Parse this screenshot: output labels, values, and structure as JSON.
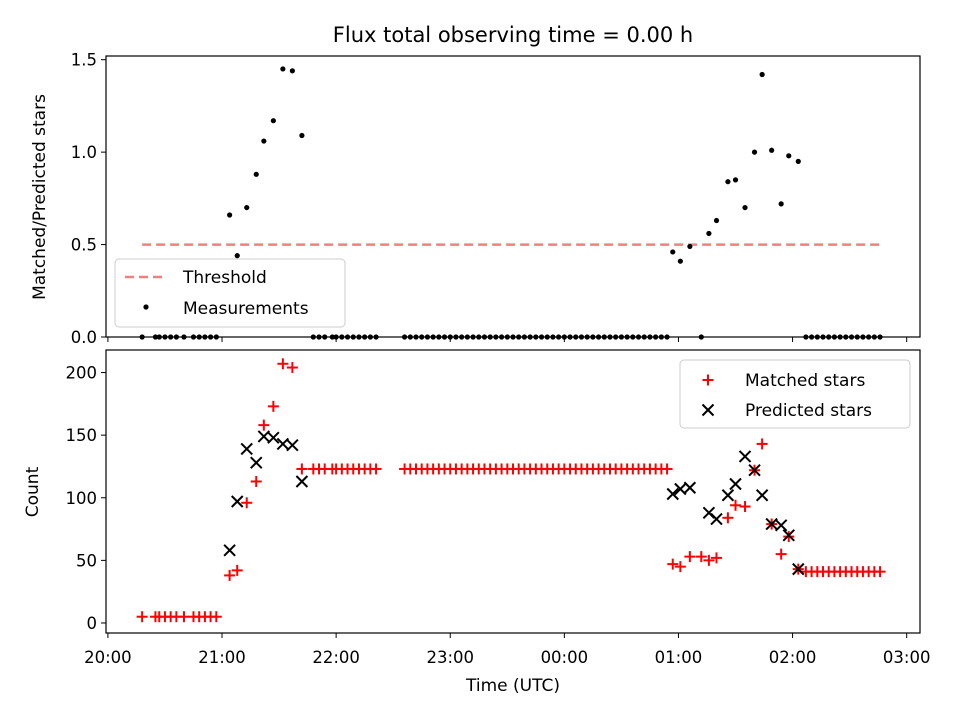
{
  "figure": {
    "title": "Flux total observing time = 0.00 h",
    "xlabel": "Time (UTC)",
    "xticks": [
      "20:00",
      "21:00",
      "22:00",
      "23:00",
      "00:00",
      "01:00",
      "02:00",
      "03:00"
    ]
  },
  "colors": {
    "threshold": "#f08080",
    "measurements": "#000000",
    "matched": "#ff0000",
    "predicted": "#000000"
  },
  "chart_data": [
    {
      "type": "scatter",
      "ylabel": "Matched/Predicted stars",
      "xlim": [
        "19:59",
        "03:07"
      ],
      "ylim": [
        0,
        1.52
      ],
      "yticks": [
        "0.0",
        "0.5",
        "1.0",
        "1.5"
      ],
      "threshold": {
        "name": "Threshold",
        "value": 0.5,
        "x_range": [
          "20:18",
          "02:47"
        ],
        "style": "dashed"
      },
      "legend_position": "lower-left",
      "series": [
        {
          "name": "Measurements",
          "marker": "dot",
          "points": [
            [
              "20:18",
              0
            ],
            [
              "20:25",
              0
            ],
            [
              "20:27",
              0
            ],
            [
              "20:30",
              0
            ],
            [
              "20:33",
              0
            ],
            [
              "20:36",
              0
            ],
            [
              "20:40",
              0
            ],
            [
              "20:45",
              0
            ],
            [
              "20:48",
              0
            ],
            [
              "20:51",
              0
            ],
            [
              "20:54",
              0
            ],
            [
              "20:57",
              0
            ],
            [
              "21:04",
              0.66
            ],
            [
              "21:08",
              0.44
            ],
            [
              "21:13",
              0.7
            ],
            [
              "21:18",
              0.88
            ],
            [
              "21:22",
              1.06
            ],
            [
              "21:27",
              1.17
            ],
            [
              "21:32",
              1.45
            ],
            [
              "21:37",
              1.44
            ],
            [
              "21:42",
              1.09
            ],
            [
              "21:48",
              0
            ],
            [
              "21:51",
              0
            ],
            [
              "21:54",
              0
            ],
            [
              "21:58",
              0
            ],
            [
              "22:00",
              0
            ],
            [
              "22:03",
              0
            ],
            [
              "22:06",
              0
            ],
            [
              "22:09",
              0
            ],
            [
              "22:12",
              0
            ],
            [
              "22:15",
              0
            ],
            [
              "22:18",
              0
            ],
            [
              "22:21",
              0
            ],
            [
              "22:36",
              0
            ],
            [
              "22:39",
              0
            ],
            [
              "22:42",
              0
            ],
            [
              "22:45",
              0
            ],
            [
              "22:48",
              0
            ],
            [
              "22:51",
              0
            ],
            [
              "22:54",
              0
            ],
            [
              "22:57",
              0
            ],
            [
              "23:00",
              0
            ],
            [
              "23:03",
              0
            ],
            [
              "23:06",
              0
            ],
            [
              "23:09",
              0
            ],
            [
              "23:12",
              0
            ],
            [
              "23:15",
              0
            ],
            [
              "23:18",
              0
            ],
            [
              "23:21",
              0
            ],
            [
              "23:24",
              0
            ],
            [
              "23:27",
              0
            ],
            [
              "23:30",
              0
            ],
            [
              "23:33",
              0
            ],
            [
              "23:36",
              0
            ],
            [
              "23:39",
              0
            ],
            [
              "23:42",
              0
            ],
            [
              "23:45",
              0
            ],
            [
              "23:48",
              0
            ],
            [
              "23:51",
              0
            ],
            [
              "23:54",
              0
            ],
            [
              "23:57",
              0
            ],
            [
              "00:00",
              0
            ],
            [
              "00:03",
              0
            ],
            [
              "00:06",
              0
            ],
            [
              "00:09",
              0
            ],
            [
              "00:12",
              0
            ],
            [
              "00:15",
              0
            ],
            [
              "00:18",
              0
            ],
            [
              "00:21",
              0
            ],
            [
              "00:24",
              0
            ],
            [
              "00:27",
              0
            ],
            [
              "00:30",
              0
            ],
            [
              "00:33",
              0
            ],
            [
              "00:36",
              0
            ],
            [
              "00:39",
              0
            ],
            [
              "00:42",
              0
            ],
            [
              "00:45",
              0
            ],
            [
              "00:48",
              0
            ],
            [
              "00:51",
              0
            ],
            [
              "00:54",
              0
            ],
            [
              "00:57",
              0.46
            ],
            [
              "01:01",
              0.41
            ],
            [
              "01:06",
              0.49
            ],
            [
              "01:12",
              0
            ],
            [
              "01:16",
              0.56
            ],
            [
              "01:20",
              0.63
            ],
            [
              "01:26",
              0.84
            ],
            [
              "01:30",
              0.85
            ],
            [
              "01:35",
              0.7
            ],
            [
              "01:40",
              1.0
            ],
            [
              "01:44",
              1.42
            ],
            [
              "01:49",
              1.01
            ],
            [
              "01:54",
              0.72
            ],
            [
              "01:58",
              0.98
            ],
            [
              "02:03",
              0.95
            ],
            [
              "02:07",
              0
            ],
            [
              "02:10",
              0
            ],
            [
              "02:13",
              0
            ],
            [
              "02:16",
              0
            ],
            [
              "02:19",
              0
            ],
            [
              "02:22",
              0
            ],
            [
              "02:25",
              0
            ],
            [
              "02:28",
              0
            ],
            [
              "02:31",
              0
            ],
            [
              "02:34",
              0
            ],
            [
              "02:37",
              0
            ],
            [
              "02:40",
              0
            ],
            [
              "02:43",
              0
            ],
            [
              "02:46",
              0
            ]
          ]
        }
      ]
    },
    {
      "type": "scatter",
      "ylabel": "Count",
      "xlim": [
        "19:59",
        "03:07"
      ],
      "ylim": [
        -8,
        218
      ],
      "yticks": [
        "0",
        "50",
        "100",
        "150",
        "200"
      ],
      "legend_position": "upper-right",
      "series": [
        {
          "name": "Matched stars",
          "marker": "plus",
          "points": [
            [
              "20:18",
              5
            ],
            [
              "20:25",
              5
            ],
            [
              "20:27",
              5
            ],
            [
              "20:30",
              5
            ],
            [
              "20:33",
              5
            ],
            [
              "20:36",
              5
            ],
            [
              "20:40",
              5
            ],
            [
              "20:45",
              5
            ],
            [
              "20:48",
              5
            ],
            [
              "20:51",
              5
            ],
            [
              "20:54",
              5
            ],
            [
              "20:57",
              5
            ],
            [
              "21:04",
              38
            ],
            [
              "21:08",
              42
            ],
            [
              "21:13",
              96
            ],
            [
              "21:18",
              113
            ],
            [
              "21:22",
              158
            ],
            [
              "21:27",
              173
            ],
            [
              "21:32",
              207
            ],
            [
              "21:37",
              204
            ],
            [
              "21:42",
              123
            ],
            [
              "21:48",
              123
            ],
            [
              "21:51",
              123
            ],
            [
              "21:54",
              123
            ],
            [
              "21:58",
              123
            ],
            [
              "22:00",
              123
            ],
            [
              "22:03",
              123
            ],
            [
              "22:06",
              123
            ],
            [
              "22:09",
              123
            ],
            [
              "22:12",
              123
            ],
            [
              "22:15",
              123
            ],
            [
              "22:18",
              123
            ],
            [
              "22:21",
              123
            ],
            [
              "22:36",
              123
            ],
            [
              "22:39",
              123
            ],
            [
              "22:42",
              123
            ],
            [
              "22:45",
              123
            ],
            [
              "22:48",
              123
            ],
            [
              "22:51",
              123
            ],
            [
              "22:54",
              123
            ],
            [
              "22:57",
              123
            ],
            [
              "23:00",
              123
            ],
            [
              "23:03",
              123
            ],
            [
              "23:06",
              123
            ],
            [
              "23:09",
              123
            ],
            [
              "23:12",
              123
            ],
            [
              "23:15",
              123
            ],
            [
              "23:18",
              123
            ],
            [
              "23:21",
              123
            ],
            [
              "23:24",
              123
            ],
            [
              "23:27",
              123
            ],
            [
              "23:30",
              123
            ],
            [
              "23:33",
              123
            ],
            [
              "23:36",
              123
            ],
            [
              "23:39",
              123
            ],
            [
              "23:42",
              123
            ],
            [
              "23:45",
              123
            ],
            [
              "23:48",
              123
            ],
            [
              "23:51",
              123
            ],
            [
              "23:54",
              123
            ],
            [
              "23:57",
              123
            ],
            [
              "00:00",
              123
            ],
            [
              "00:03",
              123
            ],
            [
              "00:06",
              123
            ],
            [
              "00:09",
              123
            ],
            [
              "00:12",
              123
            ],
            [
              "00:15",
              123
            ],
            [
              "00:18",
              123
            ],
            [
              "00:21",
              123
            ],
            [
              "00:24",
              123
            ],
            [
              "00:27",
              123
            ],
            [
              "00:30",
              123
            ],
            [
              "00:33",
              123
            ],
            [
              "00:36",
              123
            ],
            [
              "00:39",
              123
            ],
            [
              "00:42",
              123
            ],
            [
              "00:45",
              123
            ],
            [
              "00:48",
              123
            ],
            [
              "00:51",
              123
            ],
            [
              "00:54",
              123
            ],
            [
              "00:57",
              47
            ],
            [
              "01:01",
              45
            ],
            [
              "01:06",
              53
            ],
            [
              "01:12",
              53
            ],
            [
              "01:16",
              50
            ],
            [
              "01:20",
              52
            ],
            [
              "01:26",
              84
            ],
            [
              "01:30",
              94
            ],
            [
              "01:35",
              93
            ],
            [
              "01:40",
              122
            ],
            [
              "01:44",
              143
            ],
            [
              "01:49",
              79
            ],
            [
              "01:54",
              55
            ],
            [
              "01:58",
              69
            ],
            [
              "02:03",
              43
            ],
            [
              "02:07",
              41
            ],
            [
              "02:10",
              41
            ],
            [
              "02:13",
              41
            ],
            [
              "02:16",
              41
            ],
            [
              "02:19",
              41
            ],
            [
              "02:22",
              41
            ],
            [
              "02:25",
              41
            ],
            [
              "02:28",
              41
            ],
            [
              "02:31",
              41
            ],
            [
              "02:34",
              41
            ],
            [
              "02:37",
              41
            ],
            [
              "02:40",
              41
            ],
            [
              "02:43",
              41
            ],
            [
              "02:46",
              41
            ]
          ]
        },
        {
          "name": "Predicted stars",
          "marker": "x",
          "points": [
            [
              "21:04",
              58
            ],
            [
              "21:08",
              97
            ],
            [
              "21:13",
              139
            ],
            [
              "21:18",
              128
            ],
            [
              "21:22",
              149
            ],
            [
              "21:27",
              148
            ],
            [
              "21:32",
              143
            ],
            [
              "21:37",
              142
            ],
            [
              "21:42",
              113
            ],
            [
              "00:57",
              103
            ],
            [
              "01:01",
              107
            ],
            [
              "01:06",
              108
            ],
            [
              "01:16",
              88
            ],
            [
              "01:20",
              83
            ],
            [
              "01:26",
              102
            ],
            [
              "01:30",
              111
            ],
            [
              "01:35",
              133
            ],
            [
              "01:40",
              122
            ],
            [
              "01:44",
              102
            ],
            [
              "01:49",
              79
            ],
            [
              "01:54",
              78
            ],
            [
              "01:58",
              70
            ],
            [
              "02:03",
              43
            ]
          ]
        }
      ]
    }
  ]
}
